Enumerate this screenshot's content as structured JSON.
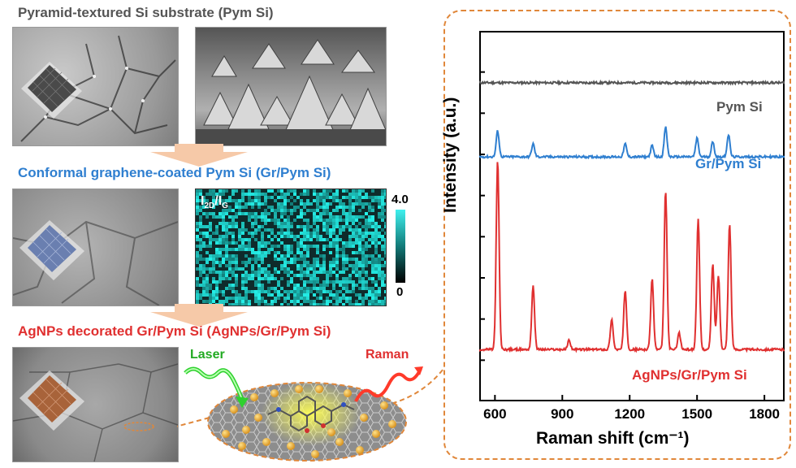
{
  "sections": {
    "pym_title": "Pyramid-textured Si substrate (Pym Si)",
    "gr_title": "Conformal graphene-coated Pym Si (Gr/Pym Si)",
    "ag_title": "AgNPs decorated Gr/Pym Si (AgNPs/Gr/Pym Si)"
  },
  "raman_map": {
    "label_main": "I",
    "label_sub1": "2D",
    "label_slash": "/I",
    "label_sub2": "G",
    "scale_max": "4.0",
    "scale_min": "0"
  },
  "schematic": {
    "laser_label": "Laser",
    "raman_label": "Raman"
  },
  "colors": {
    "pym": "#555555",
    "gr": "#2f7fd0",
    "ag": "#e03030",
    "accent_dash": "#e0873a"
  },
  "chart_data": {
    "type": "line",
    "xlabel": "Raman shift (cm⁻¹)",
    "ylabel": "Intensity (a.u.)",
    "xlim": [
      530,
      1890
    ],
    "xticks": [
      600,
      900,
      1200,
      1500,
      1800
    ],
    "grid": false,
    "series": [
      {
        "name": "Pym Si",
        "color": "#555555",
        "offset": 0.86,
        "peaks": []
      },
      {
        "name": "Gr/Pym Si",
        "color": "#2f7fd0",
        "offset": 0.66,
        "peaks": [
          [
            612,
            0.07
          ],
          [
            770,
            0.035
          ],
          [
            1180,
            0.035
          ],
          [
            1300,
            0.03
          ],
          [
            1360,
            0.08
          ],
          [
            1500,
            0.05
          ],
          [
            1570,
            0.04
          ],
          [
            1640,
            0.06
          ]
        ]
      },
      {
        "name": "AgNPs/Gr/Pym Si",
        "color": "#e03030",
        "offset": 0.14,
        "peaks": [
          [
            612,
            0.51
          ],
          [
            770,
            0.17
          ],
          [
            930,
            0.025
          ],
          [
            1120,
            0.08
          ],
          [
            1180,
            0.16
          ],
          [
            1300,
            0.19
          ],
          [
            1360,
            0.43
          ],
          [
            1420,
            0.045
          ],
          [
            1505,
            0.35
          ],
          [
            1570,
            0.23
          ],
          [
            1595,
            0.2
          ],
          [
            1645,
            0.34
          ]
        ]
      }
    ]
  }
}
